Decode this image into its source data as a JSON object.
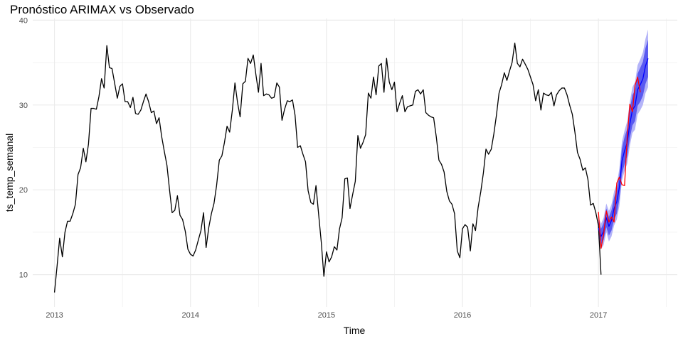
{
  "chart_data": {
    "type": "line",
    "title": "Pronóstico ARIMAX vs Observado",
    "xlabel": "Time",
    "ylabel": "ts_temp_semanal",
    "xlim": [
      2012.84,
      2017.58
    ],
    "ylim": [
      6.2,
      40.2
    ],
    "x_ticks": [
      2013,
      2014,
      2015,
      2016,
      2017
    ],
    "x_tick_labels": [
      "2013",
      "2014",
      "2015",
      "2016",
      "2017"
    ],
    "y_ticks": [
      10,
      20,
      30,
      40
    ],
    "y_tick_labels": [
      "10",
      "20",
      "30",
      "40"
    ],
    "grid": true,
    "legend": "none",
    "colors": {
      "observed": "#000000",
      "forecast_mean": "#0000ff",
      "forecast_band_80": "#5a5af0",
      "forecast_band_95": "#b4b4f8",
      "test_actual": "#ff0000",
      "grid": "#ebebeb"
    },
    "observed": {
      "x": [
        2013.0,
        2013.019,
        2013.038,
        2013.058,
        2013.077,
        2013.096,
        2013.115,
        2013.135,
        2013.154,
        2013.173,
        2013.192,
        2013.212,
        2013.231,
        2013.25,
        2013.269,
        2013.288,
        2013.308,
        2013.327,
        2013.346,
        2013.365,
        2013.385,
        2013.404,
        2013.423,
        2013.442,
        2013.462,
        2013.481,
        2013.5,
        2013.519,
        2013.538,
        2013.558,
        2013.577,
        2013.596,
        2013.615,
        2013.635,
        2013.654,
        2013.673,
        2013.692,
        2013.712,
        2013.731,
        2013.75,
        2013.769,
        2013.788,
        2013.808,
        2013.827,
        2013.846,
        2013.865,
        2013.885,
        2013.904,
        2013.923,
        2013.942,
        2013.962,
        2013.981,
        2014.0,
        2014.019,
        2014.038,
        2014.058,
        2014.077,
        2014.096,
        2014.115,
        2014.135,
        2014.154,
        2014.173,
        2014.192,
        2014.212,
        2014.231,
        2014.25,
        2014.269,
        2014.288,
        2014.308,
        2014.327,
        2014.346,
        2014.365,
        2014.385,
        2014.404,
        2014.423,
        2014.442,
        2014.462,
        2014.481,
        2014.5,
        2014.519,
        2014.538,
        2014.558,
        2014.577,
        2014.596,
        2014.615,
        2014.635,
        2014.654,
        2014.673,
        2014.692,
        2014.712,
        2014.731,
        2014.75,
        2014.769,
        2014.788,
        2014.808,
        2014.827,
        2014.846,
        2014.865,
        2014.885,
        2014.904,
        2014.923,
        2014.942,
        2014.962,
        2014.981,
        2015.0,
        2015.019,
        2015.038,
        2015.058,
        2015.077,
        2015.096,
        2015.115,
        2015.135,
        2015.154,
        2015.173,
        2015.192,
        2015.212,
        2015.231,
        2015.25,
        2015.269,
        2015.288,
        2015.308,
        2015.327,
        2015.346,
        2015.365,
        2015.385,
        2015.404,
        2015.423,
        2015.442,
        2015.462,
        2015.481,
        2015.5,
        2015.519,
        2015.538,
        2015.558,
        2015.577,
        2015.596,
        2015.615,
        2015.635,
        2015.654,
        2015.673,
        2015.692,
        2015.712,
        2015.731,
        2015.75,
        2015.769,
        2015.788,
        2015.808,
        2015.827,
        2015.846,
        2015.865,
        2015.885,
        2015.904,
        2015.923,
        2015.942,
        2015.962,
        2015.981,
        2016.0,
        2016.019,
        2016.038,
        2016.058,
        2016.077,
        2016.096,
        2016.115,
        2016.135,
        2016.154,
        2016.173,
        2016.192,
        2016.212,
        2016.231,
        2016.25,
        2016.269,
        2016.288,
        2016.308,
        2016.327,
        2016.346,
        2016.365,
        2016.385,
        2016.404,
        2016.423,
        2016.442,
        2016.462,
        2016.481,
        2016.5,
        2016.519,
        2016.538,
        2016.558,
        2016.577,
        2016.596,
        2016.615,
        2016.635,
        2016.654,
        2016.673,
        2016.692,
        2016.712,
        2016.731,
        2016.75,
        2016.769,
        2016.788,
        2016.808,
        2016.827,
        2016.846,
        2016.865,
        2016.885,
        2016.904,
        2016.923,
        2016.942,
        2016.962,
        2016.981,
        2017.0,
        2017.019
      ],
      "y": [
        7.9,
        11.0,
        14.3,
        12.1,
        15.0,
        16.3,
        16.3,
        17.2,
        18.3,
        21.8,
        22.6,
        24.9,
        23.3,
        25.4,
        29.6,
        29.6,
        29.5,
        31.0,
        33.1,
        32.0,
        37.0,
        34.4,
        34.3,
        32.6,
        30.8,
        32.2,
        32.5,
        30.4,
        30.4,
        29.7,
        30.9,
        29.0,
        28.9,
        29.4,
        30.4,
        31.3,
        30.4,
        29.1,
        29.3,
        27.8,
        28.5,
        26.3,
        24.5,
        22.9,
        20.0,
        17.3,
        17.6,
        19.3,
        17.0,
        16.5,
        15.1,
        13.0,
        12.4,
        12.2,
        12.9,
        14.1,
        15.2,
        17.3,
        13.2,
        15.6,
        17.2,
        18.4,
        20.5,
        23.5,
        24.0,
        25.6,
        27.5,
        26.8,
        29.4,
        32.6,
        30.3,
        28.6,
        32.5,
        32.8,
        35.5,
        34.9,
        35.9,
        33.6,
        31.5,
        34.9,
        31.1,
        31.3,
        31.2,
        30.8,
        30.9,
        32.6,
        32.1,
        28.2,
        29.5,
        30.5,
        30.4,
        30.6,
        28.8,
        25.0,
        25.2,
        24.2,
        23.3,
        19.9,
        18.5,
        18.3,
        20.5,
        17.2,
        13.8,
        9.8,
        12.7,
        11.5,
        12.1,
        13.3,
        12.9,
        15.4,
        16.7,
        21.3,
        21.4,
        17.8,
        19.4,
        21.0,
        26.4,
        24.9,
        25.6,
        26.5,
        31.4,
        30.8,
        33.3,
        31.2,
        34.6,
        34.9,
        31.5,
        35.5,
        32.7,
        31.8,
        32.7,
        29.2,
        30.2,
        31.1,
        29.2,
        29.8,
        29.9,
        30.0,
        31.6,
        31.8,
        31.3,
        31.8,
        29.1,
        28.8,
        28.6,
        28.5,
        26.2,
        23.5,
        23.0,
        22.1,
        19.8,
        18.7,
        18.3,
        17.2,
        12.8,
        12.0,
        15.4,
        15.9,
        15.6,
        12.8,
        16.0,
        15.2,
        17.9,
        19.8,
        22.0,
        24.8,
        24.2,
        24.8,
        26.6,
        28.8,
        31.4,
        32.4,
        33.8,
        32.9,
        34.0,
        35.0,
        37.3,
        34.9,
        34.5,
        35.4,
        34.8,
        34.2,
        33.3,
        32.4,
        30.5,
        31.8,
        29.4,
        31.4,
        31.2,
        31.1,
        31.5,
        29.9,
        31.2,
        31.7,
        32.0,
        32.0,
        31.2,
        30.0,
        28.9,
        26.8,
        24.4,
        23.6,
        22.3,
        22.6,
        21.2,
        18.2,
        18.4,
        17.3,
        15.8,
        10.0
      ]
    },
    "forecast_mean": {
      "x": [
        2017.0,
        2017.019,
        2017.038,
        2017.058,
        2017.077,
        2017.096,
        2017.115,
        2017.135,
        2017.154,
        2017.173,
        2017.192,
        2017.212,
        2017.231,
        2017.25,
        2017.269,
        2017.288,
        2017.308,
        2017.327,
        2017.346,
        2017.365
      ],
      "y": [
        15.5,
        14.5,
        15.1,
        16.7,
        15.7,
        16.4,
        17.8,
        18.6,
        20.3,
        23.4,
        24.6,
        25.6,
        27.8,
        29.4,
        29.9,
        31.8,
        32.4,
        33.1,
        34.6,
        35.5
      ]
    },
    "forecast_band_80": {
      "x": [
        2017.0,
        2017.019,
        2017.038,
        2017.058,
        2017.077,
        2017.096,
        2017.115,
        2017.135,
        2017.154,
        2017.173,
        2017.192,
        2017.212,
        2017.231,
        2017.25,
        2017.269,
        2017.288,
        2017.308,
        2017.327,
        2017.346,
        2017.365
      ],
      "lower": [
        14.7,
        13.6,
        14.1,
        15.6,
        14.6,
        15.2,
        16.5,
        17.2,
        18.9,
        21.9,
        23.0,
        24.0,
        26.1,
        27.6,
        28.1,
        29.9,
        30.4,
        31.1,
        32.5,
        33.3
      ],
      "upper": [
        16.3,
        15.4,
        16.1,
        17.8,
        16.8,
        17.6,
        19.1,
        20.0,
        21.7,
        24.9,
        26.2,
        27.2,
        29.5,
        31.2,
        31.7,
        33.7,
        34.4,
        35.1,
        36.7,
        37.7
      ]
    },
    "forecast_band_95": {
      "x": [
        2017.0,
        2017.019,
        2017.038,
        2017.058,
        2017.077,
        2017.096,
        2017.115,
        2017.135,
        2017.154,
        2017.173,
        2017.192,
        2017.212,
        2017.231,
        2017.25,
        2017.269,
        2017.288,
        2017.308,
        2017.327,
        2017.346,
        2017.365
      ],
      "lower": [
        14.2,
        13.0,
        13.5,
        15.0,
        13.9,
        14.5,
        15.8,
        16.5,
        18.1,
        21.1,
        22.2,
        23.1,
        25.2,
        26.7,
        27.1,
        28.9,
        29.4,
        30.0,
        31.4,
        32.1
      ],
      "upper": [
        16.8,
        16.0,
        16.7,
        18.4,
        17.5,
        18.3,
        19.8,
        20.7,
        22.5,
        25.7,
        27.0,
        28.1,
        30.4,
        32.1,
        32.7,
        34.7,
        35.4,
        36.2,
        37.8,
        38.9
      ]
    },
    "test_actual": {
      "x": [
        2017.0,
        2017.019,
        2017.038,
        2017.058,
        2017.077,
        2017.096,
        2017.115,
        2017.135,
        2017.154,
        2017.173,
        2017.192,
        2017.212,
        2017.231,
        2017.25,
        2017.269,
        2017.288,
        2017.308
      ],
      "y": [
        17.4,
        13.1,
        14.7,
        17.5,
        16.2,
        16.8,
        16.2,
        20.8,
        21.5,
        20.6,
        20.5,
        26.3,
        30.1,
        29.2,
        32.3,
        33.3,
        31.5
      ]
    }
  }
}
